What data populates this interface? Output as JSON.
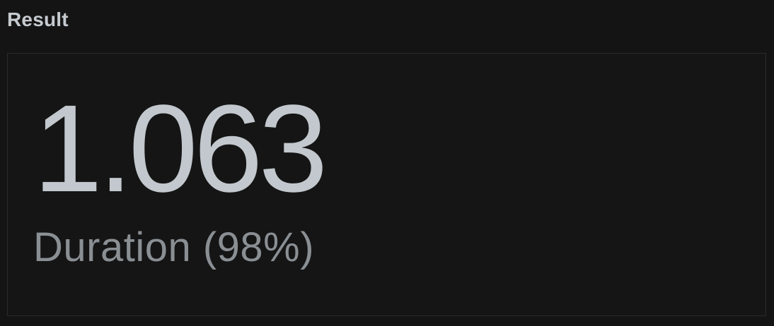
{
  "header": {
    "title": "Result"
  },
  "result": {
    "value": "1.063",
    "label": "Duration (98%)"
  },
  "colors": {
    "background": "#141414",
    "title_text": "#c6cbd0",
    "value_text": "#c2c8cd",
    "label_text": "#8a8f94",
    "panel_border": "#2a2b2d"
  }
}
